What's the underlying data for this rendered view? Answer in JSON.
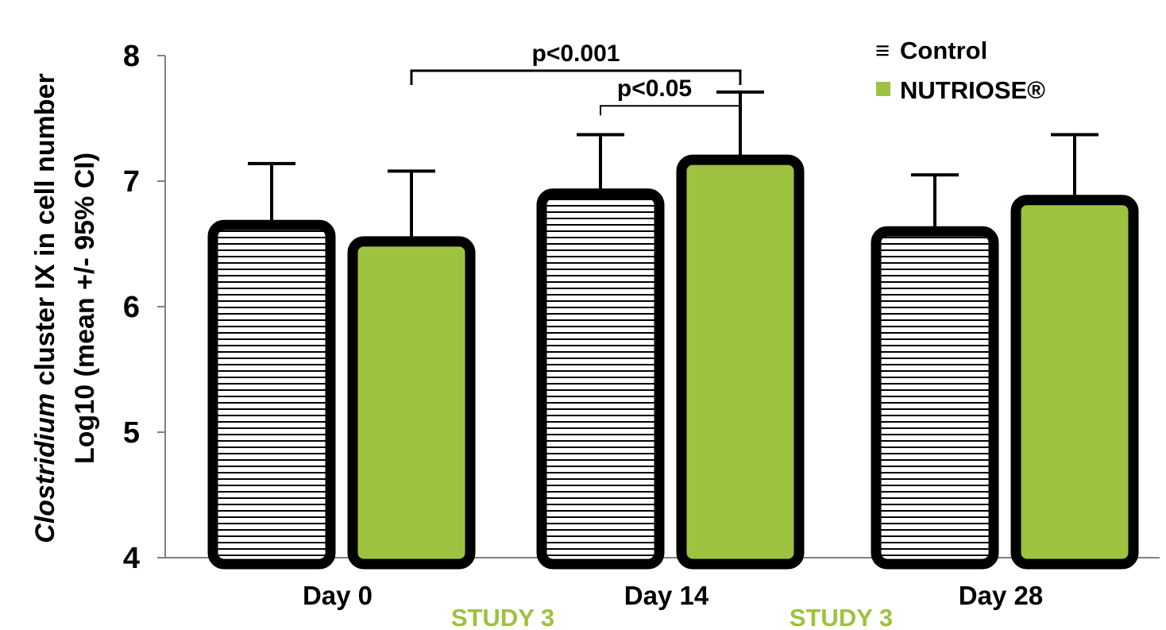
{
  "chart_data": {
    "type": "bar",
    "categories": [
      "Day 0",
      "Day 14",
      "Day 28"
    ],
    "series": [
      {
        "name": "Control",
        "values": [
          6.65,
          6.9,
          6.6
        ],
        "error_upper": [
          7.14,
          7.37,
          7.05
        ],
        "fill": "hatch"
      },
      {
        "name": "NUTRIOSE®",
        "values": [
          6.52,
          7.17,
          6.85
        ],
        "error_upper": [
          7.08,
          7.71,
          7.37
        ],
        "fill": "#9dc23f"
      }
    ],
    "ylabel_line1_italic": "Clostridium",
    "ylabel_line1_rest": " cluster IX in cell number",
    "ylabel_line2": "Log10 (mean +/- 95% CI)",
    "ylim": [
      4,
      8
    ],
    "yticks": [
      "4",
      "5",
      "6",
      "7",
      "8"
    ],
    "legend": {
      "position": "top-right",
      "control_symbol": "≡",
      "control_label": "Control",
      "nutriose_label": "NUTRIOSE®"
    },
    "annotations": [
      {
        "text": "p<0.001",
        "from": "Day 0",
        "to": "Day 14"
      },
      {
        "text": "p<0.05",
        "from": "Day 14",
        "to": "Day 14"
      }
    ],
    "study_labels": [
      "STUDY 3",
      "STUDY 3"
    ]
  },
  "colors": {
    "nutriose": "#9dc23f",
    "study": "#9dc23f",
    "outline": "#000000"
  }
}
